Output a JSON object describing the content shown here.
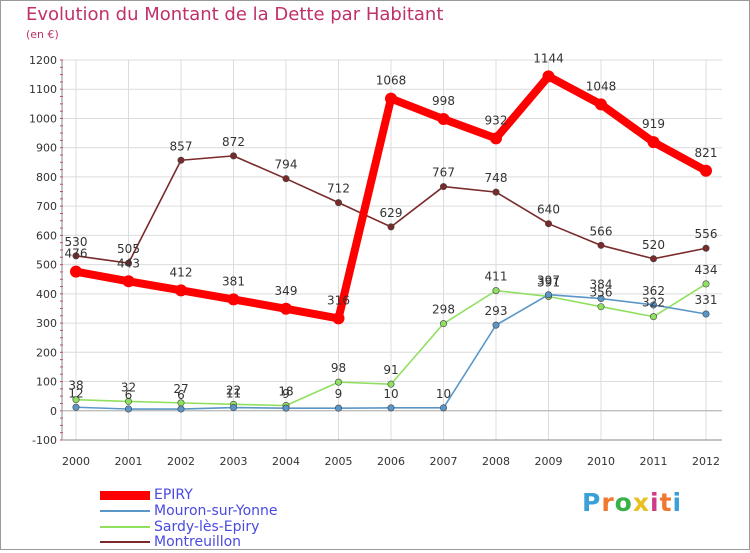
{
  "title": "Evolution du Montant de la Dette par Habitant",
  "unit_label": "(en €)",
  "chart_data": {
    "type": "line",
    "title": "Evolution du Montant de la Dette par Habitant",
    "ylabel": "(en €)",
    "xlabel": "",
    "categories": [
      "2000",
      "2001",
      "2002",
      "2003",
      "2004",
      "2005",
      "2006",
      "2007",
      "2008",
      "2009",
      "2010",
      "2011",
      "2012"
    ],
    "ylim": [
      -100,
      1200
    ],
    "yticks": [
      -100,
      0,
      100,
      200,
      300,
      400,
      500,
      600,
      700,
      800,
      900,
      1000,
      1100,
      1200
    ],
    "grid": true,
    "legend_position": "bottom-left",
    "series": [
      {
        "name": "EPIRY",
        "color": "#ff0000",
        "values": [
          476,
          443,
          412,
          381,
          349,
          316,
          1068,
          998,
          932,
          1144,
          1048,
          919,
          821
        ]
      },
      {
        "name": "Mouron-sur-Yonne",
        "color": "#5a96c8",
        "values": [
          12,
          6,
          6,
          11,
          9,
          9,
          10,
          10,
          293,
          397,
          384,
          362,
          331
        ]
      },
      {
        "name": "Sardy-lès-Epiry",
        "color": "#90e060",
        "values": [
          38,
          32,
          27,
          22,
          18,
          98,
          91,
          298,
          411,
          391,
          356,
          322,
          434
        ]
      },
      {
        "name": "Montreuillon",
        "color": "#7a2a2a",
        "values": [
          530,
          505,
          857,
          872,
          794,
          712,
          629,
          767,
          748,
          640,
          566,
          520,
          556
        ]
      }
    ]
  },
  "logo": {
    "letters": [
      "P",
      "r",
      "o",
      "x",
      "i",
      "t",
      "i"
    ],
    "colors": [
      "#3aa0d8",
      "#f07830",
      "#3ab04a",
      "#e8c020",
      "#d03a8a",
      "#f07830",
      "#3aa0d8"
    ]
  }
}
